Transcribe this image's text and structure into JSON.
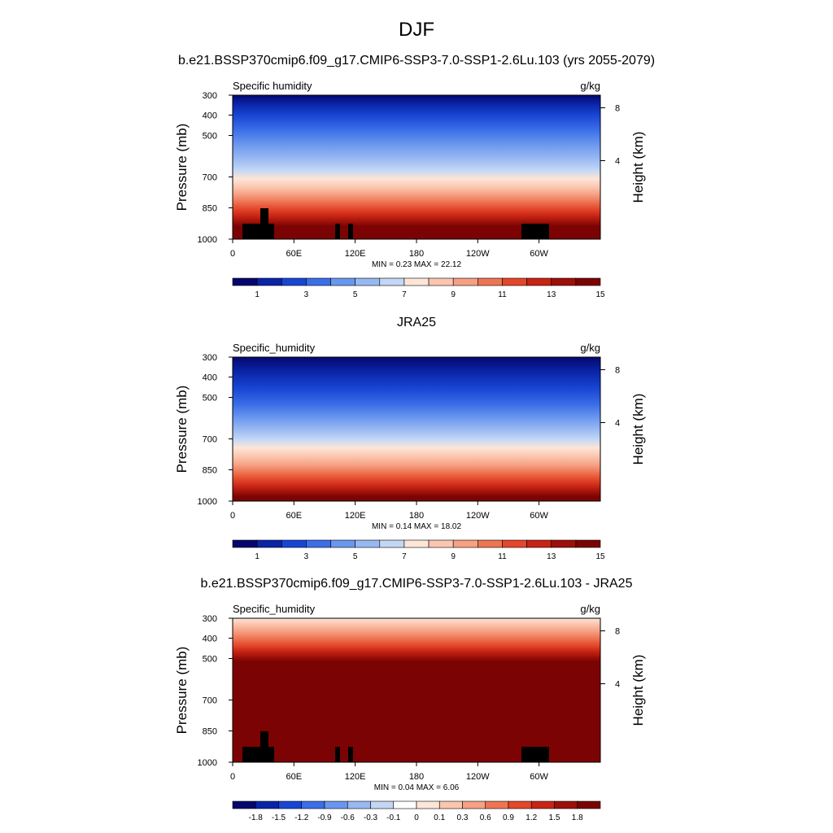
{
  "figure": {
    "season": "DJF"
  },
  "chart_data": [
    {
      "type": "heatmap",
      "title": "b.e21.BSSP370cmip6.f09_g17.CMIP6-SSP3-7.0-SSP1-2.6Lu.103 (yrs 2055-2079)",
      "left_label": "Specific humidity",
      "right_label": "g/kg",
      "ylabel": "Pressure (mb)",
      "y2label": "Height (km)",
      "x_ticks": [
        "0",
        "60E",
        "120E",
        "180",
        "120W",
        "60W"
      ],
      "y_ticks": [
        "300",
        "400",
        "500",
        "700",
        "850",
        "1000"
      ],
      "y2_ticks": [
        "8",
        "4"
      ],
      "stats": "MIN =   0.23  MAX =   22.12",
      "colorbar_labels": [
        "1",
        "3",
        "5",
        "7",
        "9",
        "11",
        "13",
        "15"
      ],
      "colorbar_colors": [
        "#05076e",
        "#0a24a8",
        "#1846d4",
        "#3b6ee8",
        "#6a97ee",
        "#98b8f2",
        "#c3d7f5",
        "#fde5d8",
        "#fbc6ae",
        "#f6a084",
        "#ee7553",
        "#e4472b",
        "#c72414",
        "#9c1009",
        "#7c0303"
      ]
    },
    {
      "type": "heatmap",
      "title": "JRA25",
      "left_label": "Specific_humidity",
      "right_label": "g/kg",
      "ylabel": "Pressure (mb)",
      "y2label": "Height (km)",
      "x_ticks": [
        "0",
        "60E",
        "120E",
        "180",
        "120W",
        "60W"
      ],
      "y_ticks": [
        "300",
        "400",
        "500",
        "700",
        "850",
        "1000"
      ],
      "y2_ticks": [
        "8",
        "4"
      ],
      "stats": "MIN =   0.14  MAX =   18.02",
      "colorbar_labels": [
        "1",
        "3",
        "5",
        "7",
        "9",
        "11",
        "13",
        "15"
      ],
      "colorbar_colors": [
        "#05076e",
        "#0a24a8",
        "#1846d4",
        "#3b6ee8",
        "#6a97ee",
        "#98b8f2",
        "#c3d7f5",
        "#fde5d8",
        "#fbc6ae",
        "#f6a084",
        "#ee7553",
        "#e4472b",
        "#c72414",
        "#9c1009",
        "#7c0303"
      ]
    },
    {
      "type": "heatmap",
      "title": "b.e21.BSSP370cmip6.f09_g17.CMIP6-SSP3-7.0-SSP1-2.6Lu.103 - JRA25",
      "left_label": "Specific_humidity",
      "right_label": "g/kg",
      "ylabel": "Pressure (mb)",
      "y2label": "Height (km)",
      "x_ticks": [
        "0",
        "60E",
        "120E",
        "180",
        "120W",
        "60W"
      ],
      "y_ticks": [
        "300",
        "400",
        "500",
        "700",
        "850",
        "1000"
      ],
      "y2_ticks": [
        "8",
        "4"
      ],
      "stats": "MIN =   0.04  MAX =   6.06",
      "colorbar_labels": [
        "-1.8",
        "-1.5",
        "-1.2",
        "-0.9",
        "-0.6",
        "-0.3",
        "-0.1",
        "0",
        "0.1",
        "0.3",
        "0.6",
        "0.9",
        "1.2",
        "1.5",
        "1.8"
      ],
      "colorbar_colors": [
        "#05076e",
        "#0a24a8",
        "#1846d4",
        "#3b6ee8",
        "#6a97ee",
        "#98b8f2",
        "#c3d7f5",
        "#ffffff",
        "#fde5d8",
        "#fbc6ae",
        "#f6a084",
        "#ee7553",
        "#e4472b",
        "#c72414",
        "#9c1009",
        "#7c0303"
      ]
    }
  ]
}
